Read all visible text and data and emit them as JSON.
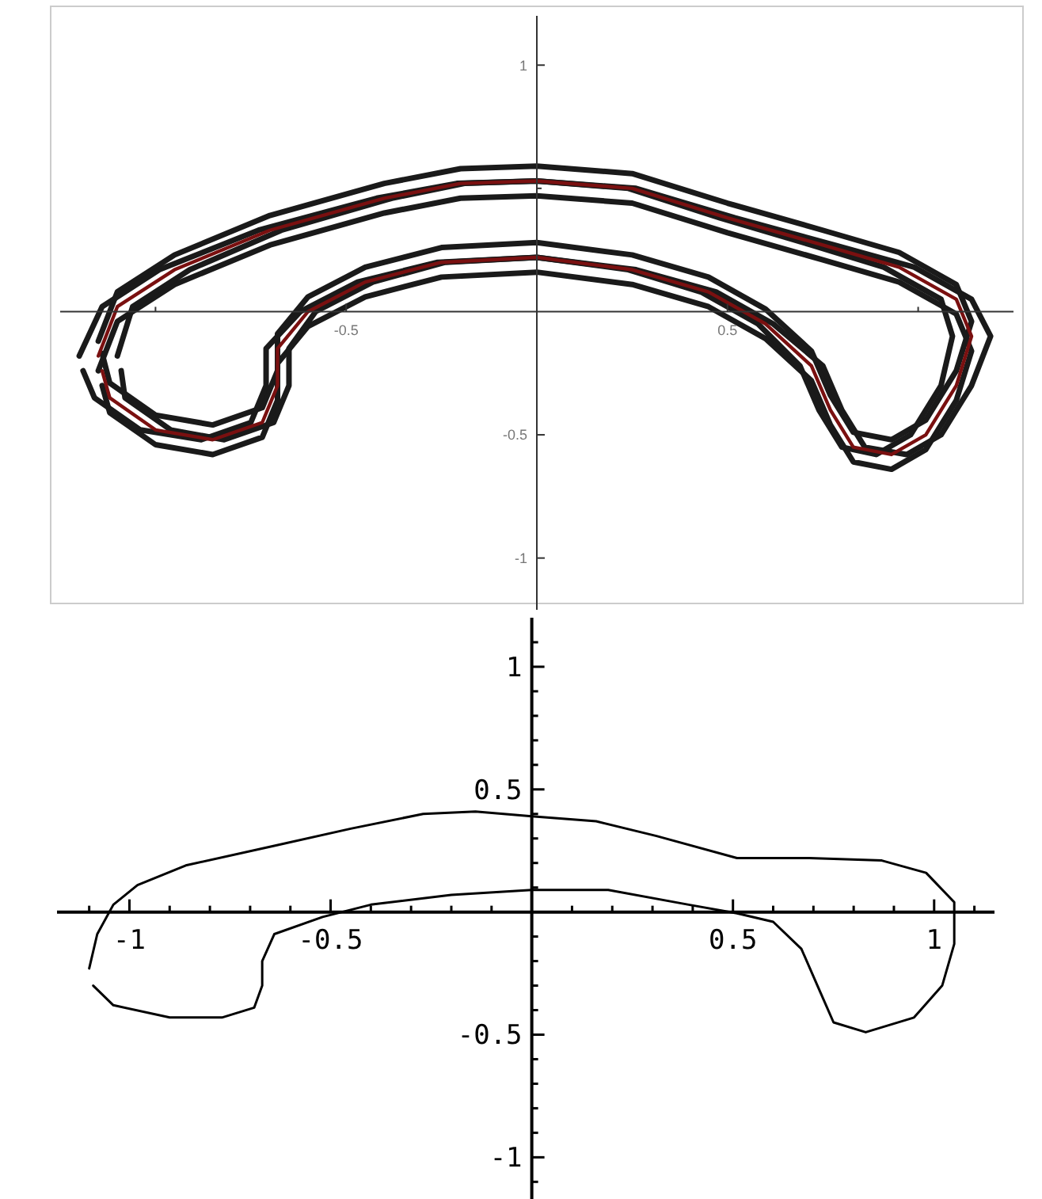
{
  "chart_data": [
    {
      "type": "line",
      "xlim": [
        -1.25,
        1.25
      ],
      "ylim": [
        -1.21,
        1.2
      ],
      "xticks": [
        {
          "value": -1,
          "label": null
        },
        -0.5,
        0.5,
        {
          "value": 1,
          "label": null
        }
      ],
      "yticks": [
        -1,
        -0.5,
        {
          "value": 0.5,
          "label": null
        },
        1
      ],
      "series": [
        {
          "color": "#1a1a1a",
          "x": [
            -1.15,
            -1.1,
            -0.95,
            -0.7,
            -0.4,
            -0.2,
            0,
            0.25,
            0.5,
            0.75,
            0.95,
            1.1,
            1.14,
            1.1,
            1.02,
            0.93,
            0.83,
            0.77,
            0.72,
            0.6,
            0.45,
            0.25,
            0,
            -0.25,
            -0.45,
            -0.6,
            -0.68,
            -0.68,
            -0.72,
            -0.85,
            -1.0,
            -1.12,
            -1.14
          ],
          "values": [
            -0.12,
            0.08,
            0.23,
            0.39,
            0.52,
            0.58,
            0.59,
            0.56,
            0.44,
            0.33,
            0.24,
            0.11,
            -0.04,
            -0.24,
            -0.44,
            -0.52,
            -0.49,
            -0.34,
            -0.16,
            0.01,
            0.14,
            0.23,
            0.28,
            0.26,
            0.18,
            0.06,
            -0.09,
            -0.24,
            -0.39,
            -0.46,
            -0.42,
            -0.29,
            -0.17
          ]
        },
        {
          "color": "#1a1a1a",
          "x": [
            -1.15,
            -1.1,
            -0.95,
            -0.7,
            -0.4,
            -0.2,
            0,
            0.25,
            0.5,
            0.75,
            0.95,
            1.1,
            1.14,
            1.1,
            1.02,
            0.93,
            0.83,
            0.77,
            0.72,
            0.6,
            0.45,
            0.25,
            0,
            -0.25,
            -0.45,
            -0.6,
            -0.68,
            -0.68,
            -0.72,
            -0.85,
            -1.0,
            -1.12,
            -1.14
          ],
          "values": [
            -0.24,
            -0.04,
            0.11,
            0.27,
            0.4,
            0.46,
            0.47,
            0.44,
            0.32,
            0.21,
            0.12,
            -0.01,
            -0.16,
            -0.36,
            -0.56,
            -0.64,
            -0.61,
            -0.46,
            -0.28,
            -0.11,
            0.02,
            0.11,
            0.16,
            0.14,
            0.06,
            -0.06,
            -0.21,
            -0.36,
            -0.51,
            -0.58,
            -0.54,
            -0.41,
            -0.3
          ]
        },
        {
          "color": "#1a1a1a",
          "x": [
            -1.2,
            -1.14,
            -0.99,
            -0.73,
            -0.42,
            -0.21,
            0,
            0.26,
            0.52,
            0.78,
            0.99,
            1.14,
            1.19,
            1.14,
            1.06,
            0.97,
            0.86,
            0.8,
            0.75,
            0.62,
            0.47,
            0.26,
            0,
            -0.26,
            -0.47,
            -0.62,
            -0.71,
            -0.71,
            -0.75,
            -0.88,
            -1.04,
            -1.16,
            -1.19
          ],
          "values": [
            -0.18,
            0.02,
            0.17,
            0.33,
            0.46,
            0.52,
            0.53,
            0.5,
            0.38,
            0.27,
            0.18,
            0.05,
            -0.1,
            -0.3,
            -0.5,
            -0.58,
            -0.55,
            -0.4,
            -0.22,
            -0.05,
            0.08,
            0.17,
            0.22,
            0.2,
            0.12,
            0,
            -0.15,
            -0.3,
            -0.45,
            -0.52,
            -0.48,
            -0.35,
            -0.24
          ]
        },
        {
          "color": "#1a1a1a",
          "x": [
            -1.1,
            -1.06,
            -0.91,
            -0.67,
            -0.38,
            -0.19,
            0,
            0.24,
            0.48,
            0.72,
            0.91,
            1.06,
            1.09,
            1.06,
            0.98,
            0.89,
            0.8,
            0.74,
            0.69,
            0.58,
            0.43,
            0.24,
            0,
            -0.24,
            -0.43,
            -0.58,
            -0.65,
            -0.65,
            -0.69,
            -0.82,
            -0.96,
            -1.08,
            -1.09
          ],
          "values": [
            -0.18,
            0.02,
            0.17,
            0.33,
            0.46,
            0.52,
            0.53,
            0.5,
            0.38,
            0.27,
            0.18,
            0.05,
            -0.1,
            -0.3,
            -0.5,
            -0.58,
            -0.55,
            -0.4,
            -0.22,
            -0.05,
            0.08,
            0.17,
            0.22,
            0.2,
            0.12,
            0,
            -0.15,
            -0.3,
            -0.45,
            -0.52,
            -0.48,
            -0.35,
            -0.24
          ]
        },
        {
          "color": "#7a1010",
          "x": [
            -1.15,
            -1.1,
            -0.95,
            -0.7,
            -0.4,
            -0.2,
            0,
            0.25,
            0.5,
            0.75,
            0.95,
            1.1,
            1.14,
            1.1,
            1.02,
            0.93,
            0.83,
            0.77,
            0.72,
            0.6,
            0.45,
            0.25,
            0,
            -0.25,
            -0.45,
            -0.6,
            -0.68,
            -0.68,
            -0.72,
            -0.85,
            -1.0,
            -1.12,
            -1.14
          ],
          "values": [
            -0.18,
            0.02,
            0.17,
            0.33,
            0.46,
            0.52,
            0.53,
            0.5,
            0.38,
            0.27,
            0.18,
            0.05,
            -0.1,
            -0.3,
            -0.5,
            -0.58,
            -0.55,
            -0.4,
            -0.22,
            -0.05,
            0.08,
            0.17,
            0.22,
            0.2,
            0.12,
            0,
            -0.15,
            -0.3,
            -0.45,
            -0.52,
            -0.48,
            -0.35,
            -0.24
          ]
        }
      ]
    },
    {
      "type": "line",
      "xlim": [
        -1.18,
        1.15
      ],
      "ylim": [
        -1.17,
        1.2
      ],
      "xticks": [
        {
          "value": -1.1,
          "label": null
        },
        -1,
        {
          "value": -0.9,
          "label": null
        },
        {
          "value": -0.8,
          "label": null
        },
        {
          "value": -0.7,
          "label": null
        },
        {
          "value": -0.6,
          "label": null
        },
        -0.5,
        {
          "value": -0.4,
          "label": null
        },
        {
          "value": -0.3,
          "label": null
        },
        {
          "value": -0.2,
          "label": null
        },
        {
          "value": -0.1,
          "label": null
        },
        {
          "value": 0.1,
          "label": null
        },
        {
          "value": 0.2,
          "label": null
        },
        {
          "value": 0.3,
          "label": null
        },
        {
          "value": 0.4,
          "label": null
        },
        0.5,
        {
          "value": 0.6,
          "label": null
        },
        {
          "value": 0.7,
          "label": null
        },
        {
          "value": 0.8,
          "label": null
        },
        {
          "value": 0.9,
          "label": null
        },
        1,
        {
          "value": 1.1,
          "label": null
        }
      ],
      "yticks": [
        {
          "value": -1.1,
          "label": null
        },
        -1,
        {
          "value": -0.9,
          "label": null
        },
        {
          "value": -0.8,
          "label": null
        },
        {
          "value": -0.7,
          "label": null
        },
        {
          "value": -0.6,
          "label": null
        },
        -0.5,
        {
          "value": -0.4,
          "label": null
        },
        {
          "value": -0.3,
          "label": null
        },
        {
          "value": -0.2,
          "label": null
        },
        {
          "value": -0.1,
          "label": null
        },
        {
          "value": 0.1,
          "label": null
        },
        {
          "value": 0.2,
          "label": null
        },
        {
          "value": 0.3,
          "label": null
        },
        {
          "value": 0.4,
          "label": null
        },
        0.5,
        {
          "value": 0.6,
          "label": null
        },
        {
          "value": 0.7,
          "label": null
        },
        {
          "value": 0.8,
          "label": null
        },
        {
          "value": 0.9,
          "label": null
        },
        1,
        {
          "value": 1.1,
          "label": null
        }
      ],
      "series": [
        {
          "color": "#000000",
          "x": [
            -1.1,
            -1.08,
            -1.04,
            -0.98,
            -0.86,
            -0.64,
            -0.45,
            -0.27,
            -0.14,
            0,
            0.16,
            0.31,
            0.51,
            0.69,
            0.87,
            0.98,
            1.05,
            1.05,
            1.02,
            0.95,
            0.83,
            0.75,
            0.71,
            0.67,
            0.6,
            0.51,
            0.39,
            0.19,
            0,
            -0.2,
            -0.4,
            -0.52,
            -0.64,
            -0.67,
            -0.67,
            -0.69,
            -0.77,
            -0.9,
            -1.04,
            -1.09
          ],
          "values": [
            -0.23,
            -0.09,
            0.03,
            0.11,
            0.19,
            0.27,
            0.34,
            0.4,
            0.41,
            0.39,
            0.37,
            0.31,
            0.22,
            0.22,
            0.21,
            0.16,
            0.04,
            -0.13,
            -0.3,
            -0.43,
            -0.49,
            -0.45,
            -0.3,
            -0.15,
            -0.04,
            -0.005,
            0.03,
            0.09,
            0.09,
            0.07,
            0.03,
            -0.02,
            -0.09,
            -0.2,
            -0.3,
            -0.39,
            -0.43,
            -0.43,
            -0.38,
            -0.3
          ]
        }
      ]
    }
  ]
}
